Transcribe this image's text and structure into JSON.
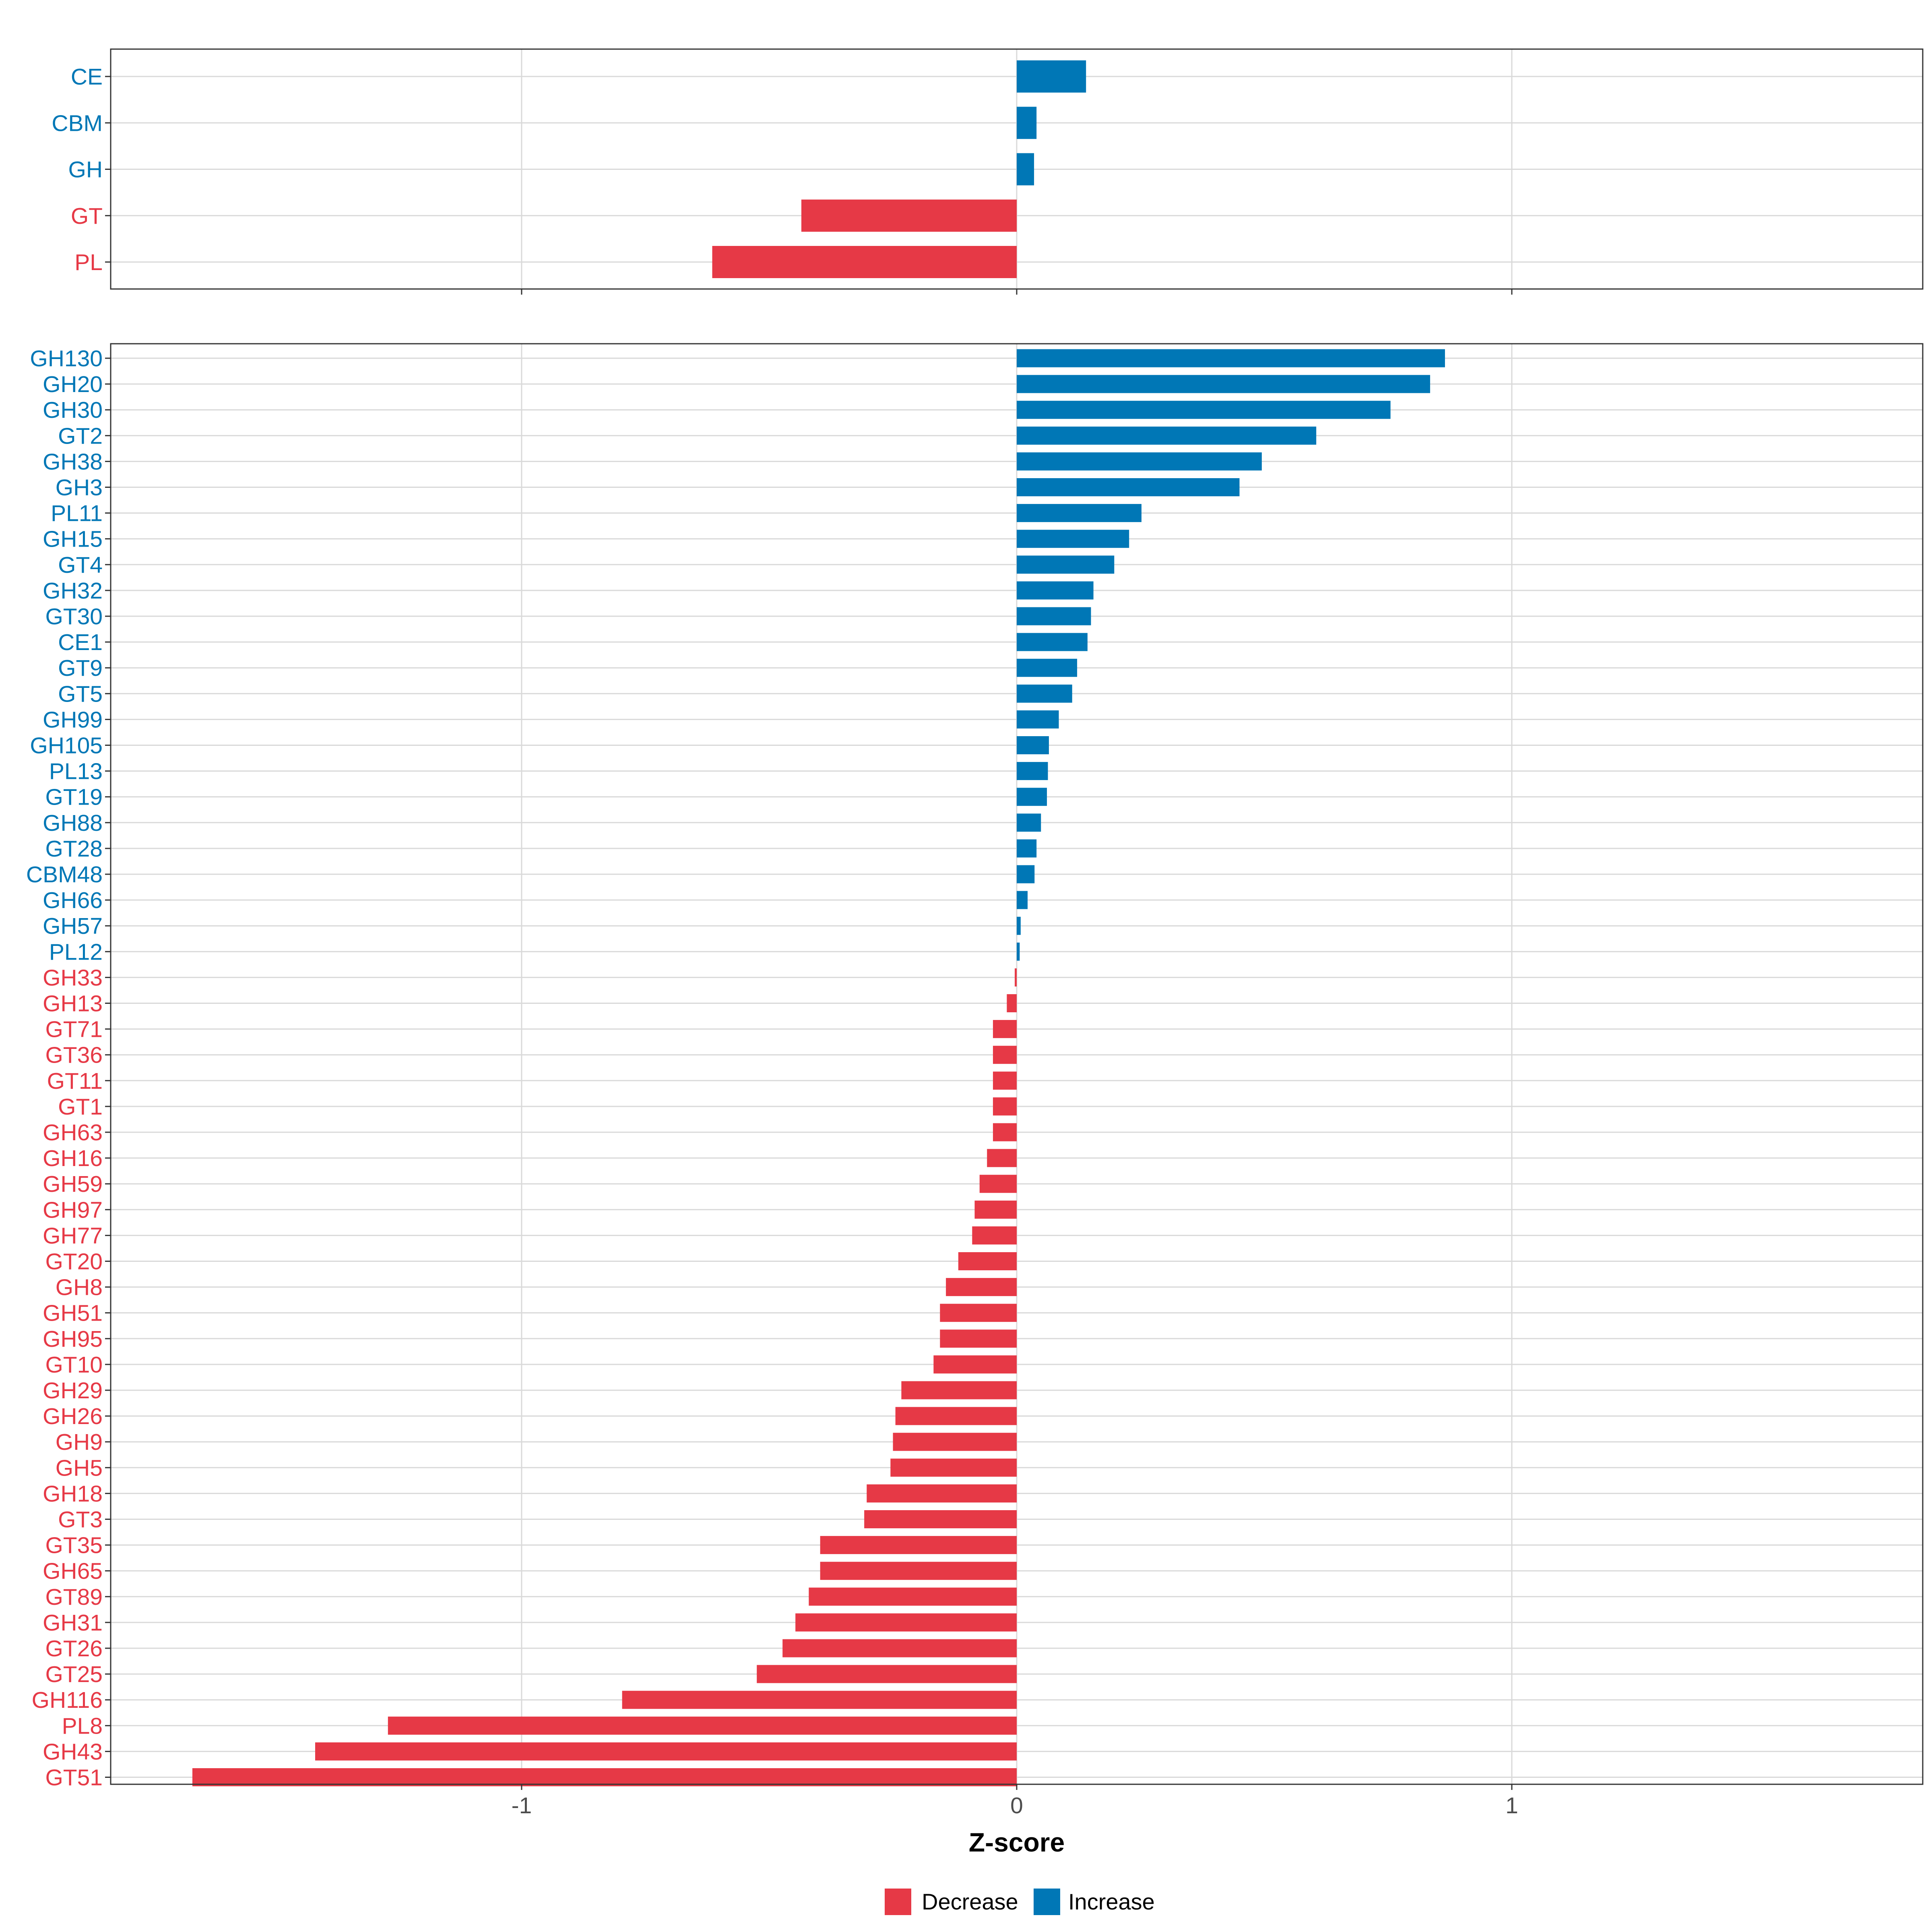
{
  "colors": {
    "decrease": "#E63946",
    "increase": "#0077B6",
    "grid": "#D9D9D9",
    "frame": "#333333"
  },
  "chart_data": [
    {
      "type": "bar",
      "orientation": "horizontal",
      "categories": [
        "CE",
        "CBM",
        "GH",
        "GT",
        "PL"
      ],
      "values": [
        0.14,
        0.04,
        0.035,
        -0.435,
        -0.615
      ],
      "xlim": [
        -1.83,
        1.83
      ],
      "xticks": [
        -1,
        0,
        1
      ],
      "grid": true
    },
    {
      "type": "bar",
      "orientation": "horizontal",
      "categories": [
        "GH130",
        "GH20",
        "GH30",
        "GT2",
        "GH38",
        "GH3",
        "PL11",
        "GH15",
        "GT4",
        "GH32",
        "GT30",
        "CE1",
        "GT9",
        "GT5",
        "GH99",
        "GH105",
        "PL13",
        "GT19",
        "GH88",
        "GT28",
        "CBM48",
        "GH66",
        "GH57",
        "PL12",
        "GH33",
        "GH13",
        "GT71",
        "GT36",
        "GT11",
        "GT1",
        "GH63",
        "GH16",
        "GH59",
        "GH97",
        "GH77",
        "GT20",
        "GH8",
        "GH51",
        "GH95",
        "GT10",
        "GH29",
        "GH26",
        "GH9",
        "GH5",
        "GH18",
        "GT3",
        "GT35",
        "GH65",
        "GT89",
        "GH31",
        "GT26",
        "GT25",
        "GH116",
        "PL8",
        "GH43",
        "GT51"
      ],
      "values": [
        0.865,
        0.835,
        0.755,
        0.605,
        0.495,
        0.45,
        0.252,
        0.227,
        0.197,
        0.155,
        0.15,
        0.143,
        0.122,
        0.112,
        0.085,
        0.065,
        0.063,
        0.061,
        0.049,
        0.04,
        0.036,
        0.022,
        0.008,
        0.006,
        -0.004,
        -0.02,
        -0.048,
        -0.048,
        -0.048,
        -0.048,
        -0.048,
        -0.06,
        -0.075,
        -0.085,
        -0.09,
        -0.118,
        -0.143,
        -0.155,
        -0.155,
        -0.168,
        -0.233,
        -0.245,
        -0.25,
        -0.255,
        -0.303,
        -0.308,
        -0.397,
        -0.397,
        -0.42,
        -0.447,
        -0.473,
        -0.525,
        -0.797,
        -1.27,
        -1.417,
        -1.665
      ],
      "xlim": [
        -1.83,
        1.83
      ],
      "xticks": [
        -1,
        0,
        1
      ],
      "xtick_labels": [
        "-1",
        "0",
        "1"
      ],
      "xlabel": "Z-score",
      "grid": true
    }
  ],
  "legend": {
    "items": [
      {
        "label": "Decrease",
        "color": "#E63946"
      },
      {
        "label": "Increase",
        "color": "#0077B6"
      }
    ],
    "position": "bottom"
  }
}
